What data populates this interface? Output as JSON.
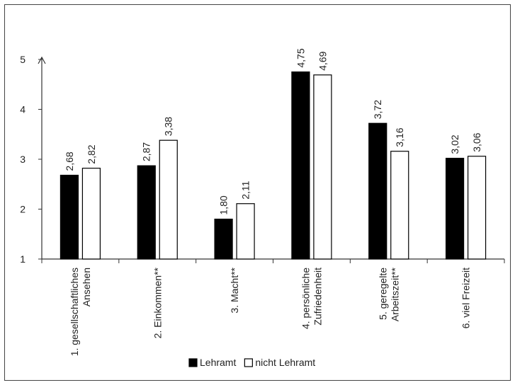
{
  "chart_data": {
    "type": "bar",
    "categories": [
      [
        "1. gesellschaftliches",
        "Ansehen"
      ],
      [
        "2. Einkommen**"
      ],
      [
        "3. Macht**"
      ],
      [
        "4. persönliche",
        "Zufriedenheit"
      ],
      [
        "5. geregelte",
        "Arbeitszeit**"
      ],
      [
        "6. viel Freizeit"
      ]
    ],
    "series": [
      {
        "name": "Lehramt",
        "values": [
          2.68,
          2.87,
          1.8,
          4.75,
          3.72,
          3.02
        ],
        "labels": [
          "2,68",
          "2,87",
          "1,80",
          "4,75",
          "3,72",
          "3,02"
        ],
        "color": "#000000"
      },
      {
        "name": "nicht Lehramt",
        "values": [
          2.82,
          3.38,
          2.11,
          4.69,
          3.16,
          3.06
        ],
        "labels": [
          "2,82",
          "3,38",
          "2,11",
          "4,69",
          "3,16",
          "3,06"
        ],
        "color": "#ffffff"
      }
    ],
    "ylim": [
      1,
      5
    ],
    "yticks": [
      "1",
      "2",
      "3",
      "4",
      "5"
    ],
    "ytick_values": [
      1,
      2,
      3,
      4,
      5
    ],
    "legend_position": "bottom",
    "grid": false
  }
}
